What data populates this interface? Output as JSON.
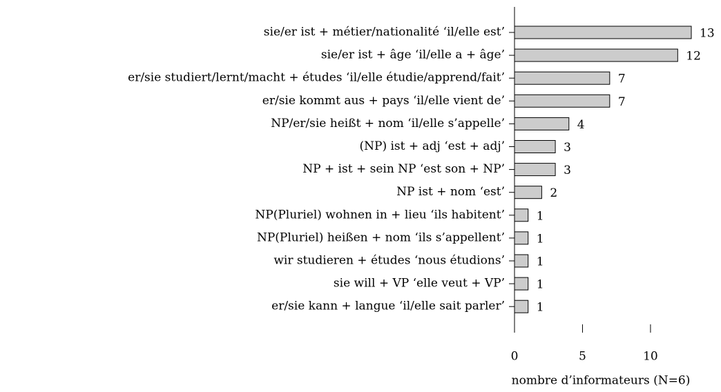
{
  "chart_data": {
    "type": "barh",
    "categories": [
      "sie/er ist + métier/nationalité ‘il/elle est’",
      "sie/er ist + âge ‘il/elle a + âge’",
      "er/sie studiert/lernt/macht + études ‘il/elle étudie/apprend/fait’",
      "er/sie kommt aus + pays ‘il/elle vient de’",
      "NP/er/sie heißt + nom ‘il/elle s’appelle’",
      "(NP) ist + adj ‘est + adj’",
      "NP + ist + sein NP ‘est son + NP’",
      "NP ist + nom ‘est’",
      "NP(Pluriel) wohnen in + lieu ‘ils habitent’",
      "NP(Pluriel) heißen + nom ‘ils s’appellent’",
      "wir studieren + études ‘nous étudions’",
      "sie will + VP ‘elle veut + VP’",
      "er/sie kann + langue ‘il/elle sait parler’"
    ],
    "values": [
      13,
      12,
      7,
      7,
      4,
      3,
      3,
      2,
      1,
      1,
      1,
      1,
      1
    ],
    "color": "#cccccc",
    "xlim": [
      0,
      13
    ],
    "xticks": [
      0,
      5,
      10
    ],
    "xlabel": "nombre d’informateurs (N=6)"
  }
}
